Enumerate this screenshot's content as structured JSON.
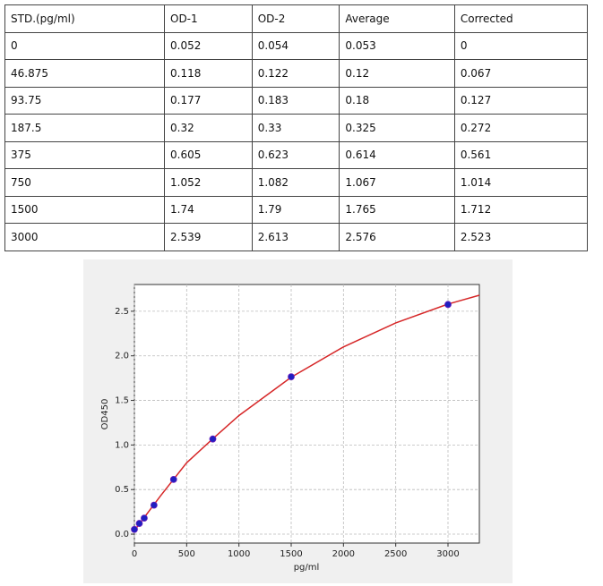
{
  "table": {
    "header": [
      "STD.(pg/ml)",
      "OD-1",
      "OD-2",
      "Average",
      "Corrected"
    ],
    "rows": [
      [
        "0",
        "0.052",
        "0.054",
        "0.053",
        "0"
      ],
      [
        "46.875",
        "0.118",
        "0.122",
        "0.12",
        "0.067"
      ],
      [
        "93.75",
        "0.177",
        "0.183",
        "0.18",
        "0.127"
      ],
      [
        "187.5",
        "0.32",
        "0.33",
        "0.325",
        "0.272"
      ],
      [
        "375",
        "0.605",
        "0.623",
        "0.614",
        "0.561"
      ],
      [
        "750",
        "1.052",
        "1.082",
        "1.067",
        "1.014"
      ],
      [
        "1500",
        "1.74",
        "1.79",
        "1.765",
        "1.712"
      ],
      [
        "3000",
        "2.539",
        "2.613",
        "2.576",
        "2.523"
      ]
    ]
  },
  "chart_data": {
    "type": "scatter",
    "x_label": "pg/ml",
    "y_label": "OD450",
    "x": [
      0,
      46.875,
      93.75,
      187.5,
      375,
      750,
      1500,
      3000
    ],
    "values": [
      0.053,
      0.12,
      0.18,
      0.325,
      0.614,
      1.067,
      1.765,
      2.576
    ],
    "color": "#1f1fbf",
    "curve": {
      "x": [
        0,
        250,
        500,
        750,
        1000,
        1500,
        2000,
        2500,
        3000,
        3300
      ],
      "values": [
        0.04,
        0.43,
        0.8,
        1.07,
        1.33,
        1.76,
        2.1,
        2.37,
        2.58,
        2.68
      ],
      "color": "#d62728"
    },
    "xlim": [
      0,
      3300
    ],
    "ylim": [
      -0.1,
      2.8
    ],
    "xticks": [
      0,
      500,
      1000,
      1500,
      2000,
      2500,
      3000
    ],
    "yticks": [
      {
        "value": 0,
        "label": "0.0"
      },
      {
        "value": 0.5,
        "label": "0.5"
      },
      {
        "value": 1,
        "label": "1.0"
      },
      {
        "value": 1.5,
        "label": "1.5"
      },
      {
        "value": 2,
        "label": "2.0"
      },
      {
        "value": 2.5,
        "label": "2.5"
      }
    ],
    "grid": true
  }
}
